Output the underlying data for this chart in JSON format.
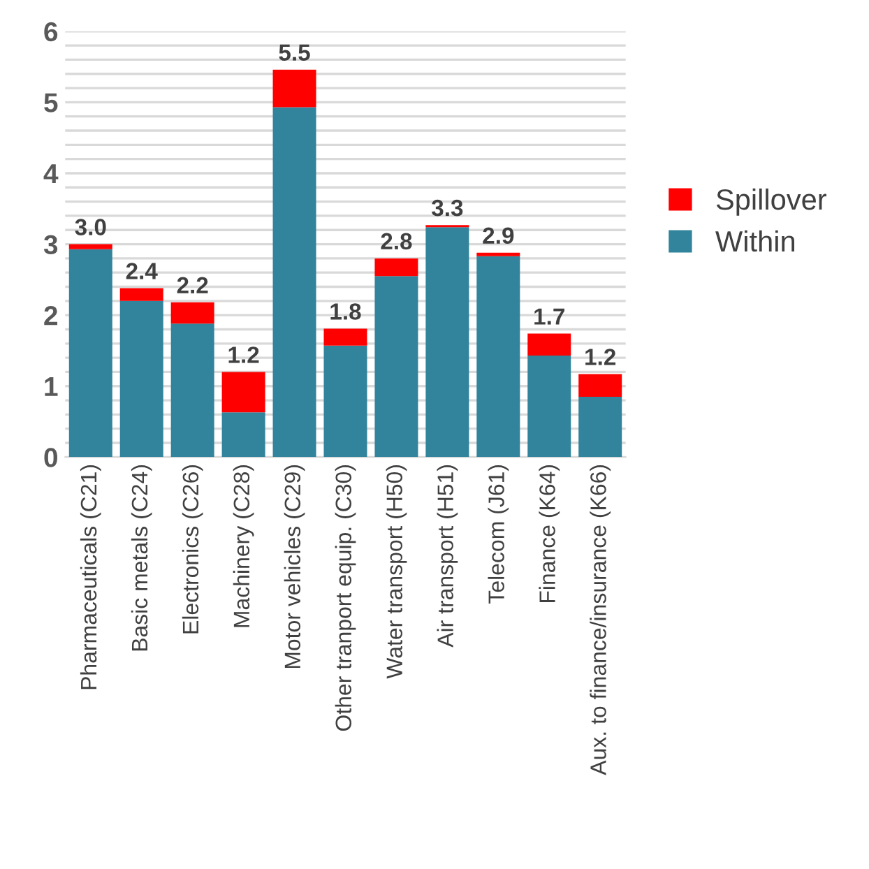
{
  "chart_data": {
    "type": "bar",
    "stacked": true,
    "categories": [
      "Pharmaceuticals (C21)",
      "Basic metals (C24)",
      "Electronics (C26)",
      "Machinery (C28)",
      "Motor vehicles (C29)",
      "Other tranport equip. (C30)",
      "Water transport (H50)",
      "Air transport (H51)",
      "Telecom (J61)",
      "Finance (K64)",
      "Aux. to finance/insurance (K66)"
    ],
    "series": [
      {
        "name": "Within",
        "color": "#31849b",
        "values": [
          2.93,
          2.2,
          1.88,
          0.63,
          4.93,
          1.57,
          2.55,
          3.24,
          2.83,
          1.43,
          0.85
        ]
      },
      {
        "name": "Spillover",
        "color": "#ff0000",
        "values": [
          0.07,
          0.18,
          0.3,
          0.57,
          0.53,
          0.24,
          0.25,
          0.03,
          0.05,
          0.31,
          0.32
        ]
      }
    ],
    "totals": [
      "3.0",
      "2.4",
      "2.2",
      "1.2",
      "5.5",
      "1.8",
      "2.8",
      "3.3",
      "2.9",
      "1.7",
      "1.2"
    ],
    "ylim": [
      0,
      6
    ],
    "yticks": [
      0,
      {
        "value": 0.2,
        "label": null
      },
      {
        "value": 0.4,
        "label": null
      },
      {
        "value": 0.6,
        "label": null
      },
      {
        "value": 0.8,
        "label": null
      },
      1,
      {
        "value": 1.2,
        "label": null
      },
      {
        "value": 1.4,
        "label": null
      },
      {
        "value": 1.6,
        "label": null
      },
      {
        "value": 1.8,
        "label": null
      },
      2,
      {
        "value": 2.2,
        "label": null
      },
      {
        "value": 2.4,
        "label": null
      },
      {
        "value": 2.6,
        "label": null
      },
      {
        "value": 2.8,
        "label": null
      },
      3,
      {
        "value": 3.2,
        "label": null
      },
      {
        "value": 3.4,
        "label": null
      },
      {
        "value": 3.6,
        "label": null
      },
      {
        "value": 3.8,
        "label": null
      },
      4,
      {
        "value": 4.2,
        "label": null
      },
      {
        "value": 4.4,
        "label": null
      },
      {
        "value": 4.6,
        "label": null
      },
      {
        "value": 4.8,
        "label": null
      },
      5,
      {
        "value": 5.2,
        "label": null
      },
      {
        "value": 5.4,
        "label": null
      },
      {
        "value": 5.6,
        "label": null
      },
      {
        "value": 5.8,
        "label": null
      },
      6
    ],
    "grid": "y",
    "legend": "right"
  }
}
